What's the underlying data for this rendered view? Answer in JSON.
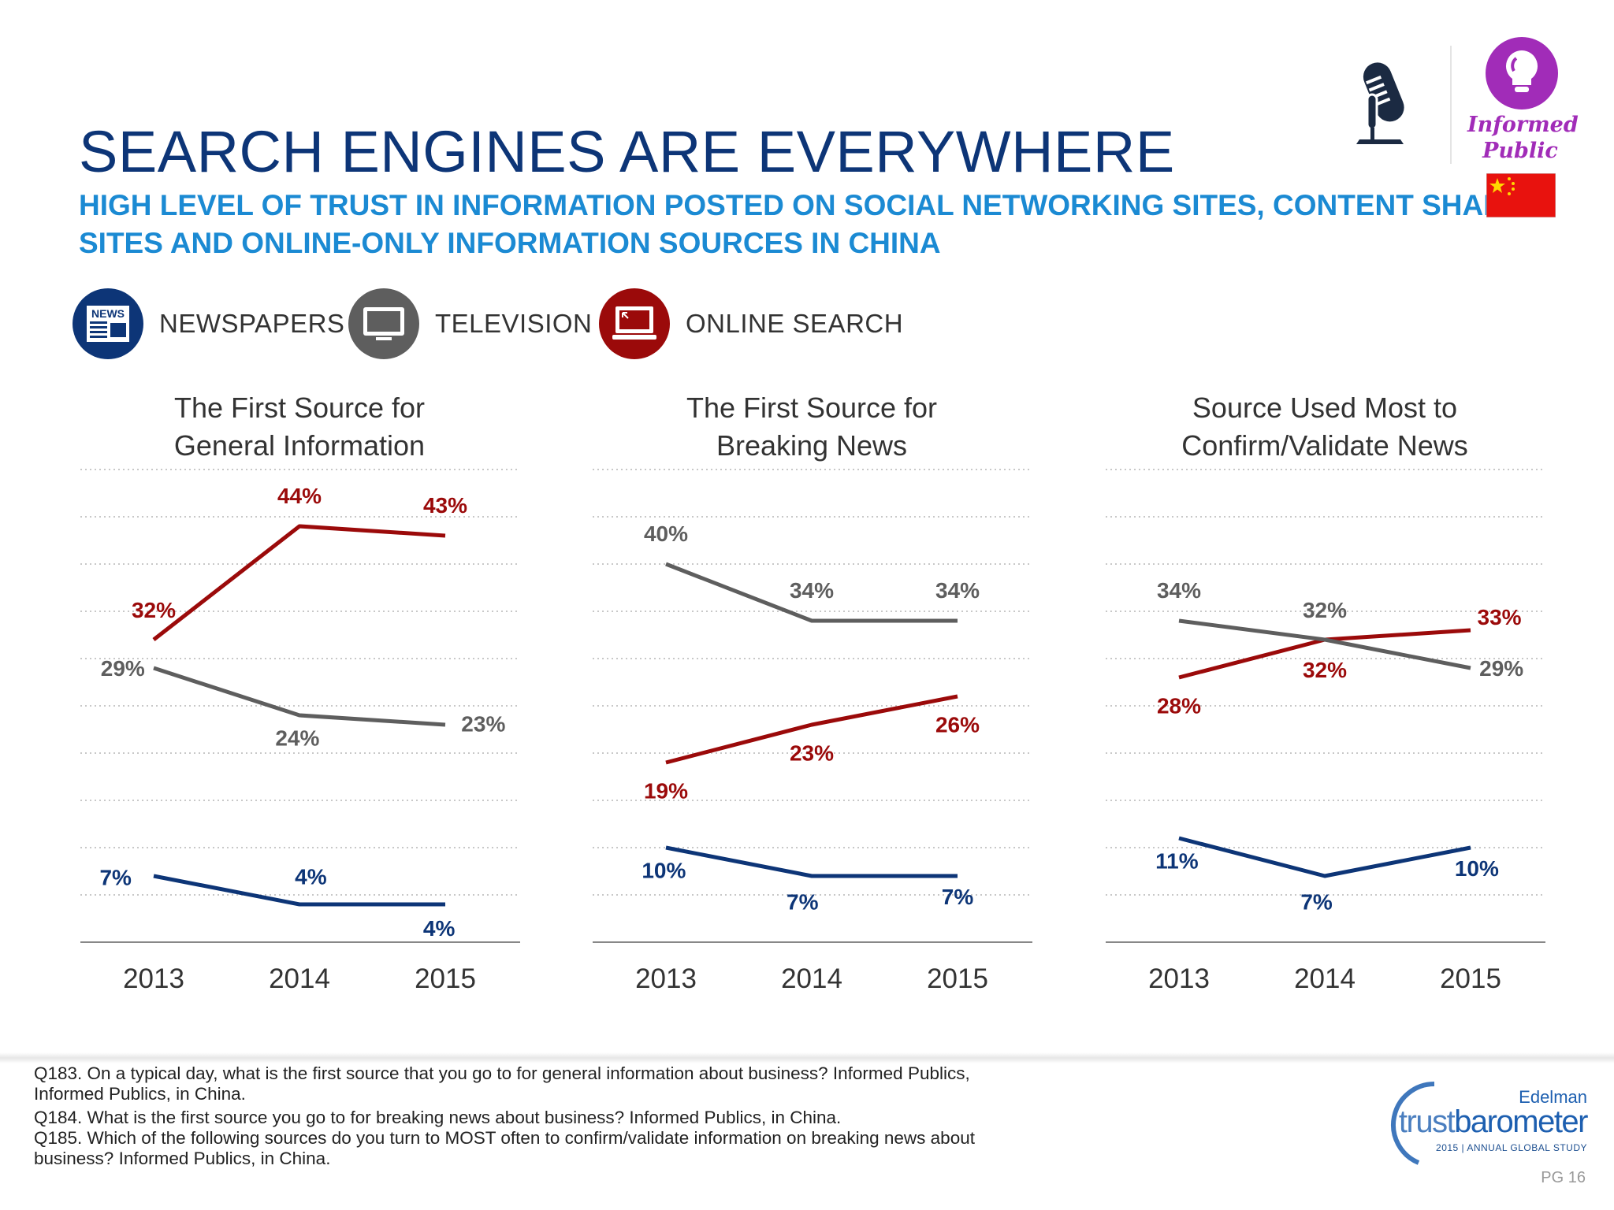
{
  "header": {
    "title": "SEARCH ENGINES ARE EVERYWHERE",
    "subtitle_line1": "HIGH LEVEL OF TRUST IN INFORMATION POSTED ON SOCIAL NETWORKING SITES, CONTENT SHARING",
    "subtitle_line2": "SITES AND ONLINE-ONLY INFORMATION SOURCES IN CHINA",
    "badge": {
      "line1": "Informed",
      "line2": "Public",
      "icon": "lightbulb-icon",
      "color": "#a12cb8"
    },
    "flag": "china-flag",
    "media_icon": "microphone-icon"
  },
  "legend": [
    {
      "label": "NEWSPAPERS",
      "icon": "newspaper-icon",
      "color": "#0d3577"
    },
    {
      "label": "TELEVISION",
      "icon": "television-icon",
      "color": "#5e5e5e"
    },
    {
      "label": "ONLINE SEARCH",
      "icon": "laptop-icon",
      "color": "#9b0a0a"
    }
  ],
  "chart_data": [
    {
      "type": "line",
      "title_line1": "The First Source for",
      "title_line2": "General Information",
      "categories": [
        "2013",
        "2014",
        "2015"
      ],
      "ylim": [
        0,
        50
      ],
      "grid": true,
      "series": [
        {
          "name": "ONLINE SEARCH",
          "color": "#9b0a0a",
          "values": [
            32,
            44,
            43
          ],
          "labels": [
            "32%",
            "44%",
            "43%"
          ]
        },
        {
          "name": "TELEVISION",
          "color": "#5e5e5e",
          "values": [
            29,
            24,
            23
          ],
          "labels": [
            "29%",
            "24%",
            "23%"
          ]
        },
        {
          "name": "NEWSPAPERS",
          "color": "#0d3577",
          "values": [
            7,
            4,
            4
          ],
          "labels": [
            "7%",
            "4%",
            "4%"
          ]
        }
      ]
    },
    {
      "type": "line",
      "title_line1": "The First Source for",
      "title_line2": "Breaking News",
      "categories": [
        "2013",
        "2014",
        "2015"
      ],
      "ylim": [
        0,
        50
      ],
      "grid": true,
      "series": [
        {
          "name": "ONLINE SEARCH",
          "color": "#9b0a0a",
          "values": [
            19,
            23,
            26
          ],
          "labels": [
            "19%",
            "23%",
            "26%"
          ]
        },
        {
          "name": "TELEVISION",
          "color": "#5e5e5e",
          "values": [
            40,
            34,
            34
          ],
          "labels": [
            "40%",
            "34%",
            "34%"
          ]
        },
        {
          "name": "NEWSPAPERS",
          "color": "#0d3577",
          "values": [
            10,
            7,
            7
          ],
          "labels": [
            "10%",
            "7%",
            "7%"
          ]
        }
      ]
    },
    {
      "type": "line",
      "title_line1": "Source Used Most to",
      "title_line2": "Confirm/Validate News",
      "categories": [
        "2013",
        "2014",
        "2015"
      ],
      "ylim": [
        0,
        50
      ],
      "grid": true,
      "series": [
        {
          "name": "ONLINE SEARCH",
          "color": "#9b0a0a",
          "values": [
            28,
            32,
            33
          ],
          "labels": [
            "28%",
            "32%",
            "33%"
          ]
        },
        {
          "name": "TELEVISION",
          "color": "#5e5e5e",
          "values": [
            34,
            32,
            29
          ],
          "labels": [
            "34%",
            "32%",
            "29%"
          ]
        },
        {
          "name": "NEWSPAPERS",
          "color": "#0d3577",
          "values": [
            11,
            7,
            10
          ],
          "labels": [
            "11%",
            "7%",
            "10%"
          ]
        }
      ]
    }
  ],
  "footer": {
    "q183_line1": "Q183. On a typical day, what is the first source that you go to for general information about business? Informed Publics,",
    "q183_line2": "Informed Publics, in China.",
    "q184": "Q184. What is the first source you go to for breaking news about business? Informed Publics, in China.",
    "q185_line1": "Q185. Which of the following sources do you turn to MOST often to confirm/validate information on breaking news about",
    "q185_line2": "business? Informed Publics, in China.",
    "logo": {
      "brand": "Edelman",
      "name_light": "trust",
      "name_bold": "barometer",
      "tagline": "2015 | ANNUAL GLOBAL STUDY"
    },
    "page": "PG 16"
  }
}
